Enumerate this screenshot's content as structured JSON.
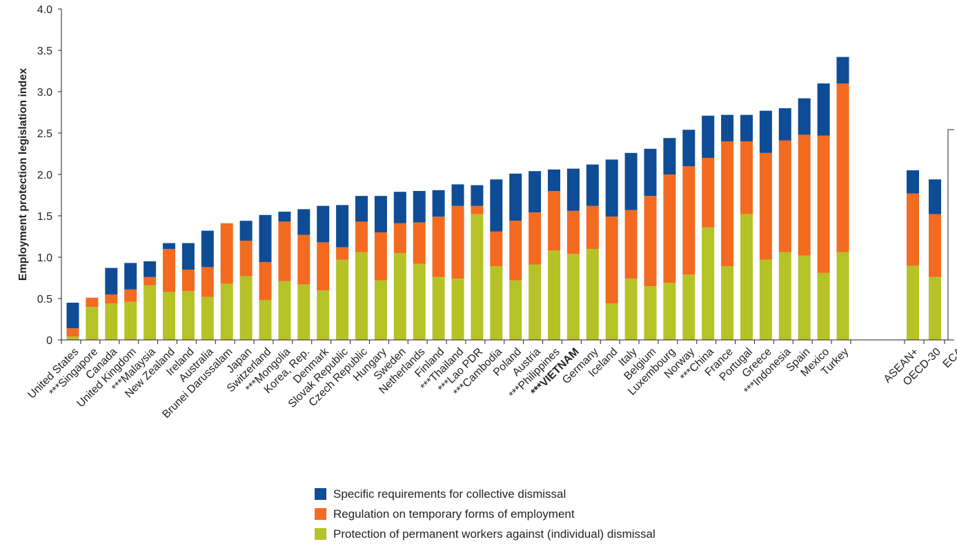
{
  "chart_data": {
    "type": "bar",
    "stacked": true,
    "ylabel": "Employment protection legislation index",
    "ylim": [
      0,
      4.0
    ],
    "yticks": [
      "0",
      "0.5",
      "1.0",
      "1.5",
      "2.0",
      "2.5",
      "3.0",
      "3.5",
      "4.0"
    ],
    "categories": [
      "United States",
      "***Singapore",
      "Canada",
      "United Kingdom",
      "***Malaysia",
      "New Zealand",
      "Ireland",
      "Australia",
      "Brunei Darussalam",
      "Japan",
      "Switzerland",
      "***Mongolia",
      "Korea, Rep.",
      "Denmark",
      "Slovak Republic",
      "Czech Republic",
      "Hungary",
      "Sweden",
      "Netherlands",
      "Finland",
      "***Thailand",
      "***Lao PDR",
      "***Cambodia",
      "Poland",
      "Austria",
      "***Philippines",
      "***VIETNAM",
      "Germany",
      "Iceland",
      "Italy",
      "Belgium",
      "Luxembourg",
      "Norway",
      "***China",
      "France",
      "Portugal",
      "Greece",
      "***Indonesia",
      "Spain",
      "Mexico",
      "Turkey",
      "ASEAN+",
      "OECD-30",
      "ECA"
    ],
    "bold_categories": [
      "***VIETNAM"
    ],
    "series": [
      {
        "name": "Protection of permanent workers against (individual) dismissal",
        "color": "#b5c327",
        "values": [
          0.04,
          0.4,
          0.44,
          0.46,
          0.66,
          0.58,
          0.59,
          0.52,
          0.68,
          0.77,
          0.48,
          0.71,
          0.67,
          0.6,
          0.97,
          1.06,
          0.72,
          1.05,
          0.92,
          0.76,
          0.74,
          1.52,
          0.89,
          0.72,
          0.91,
          1.08,
          1.04,
          1.1,
          0.44,
          0.74,
          0.65,
          0.69,
          0.79,
          1.36,
          0.89,
          1.52,
          0.97,
          1.06,
          1.02,
          0.81,
          1.06,
          0.9,
          0.76,
          null
        ]
      },
      {
        "name": "Regulation on temporary forms of employment",
        "color": "#f26b21",
        "values": [
          0.1,
          0.11,
          0.11,
          0.15,
          0.1,
          0.52,
          0.26,
          0.36,
          0.73,
          0.43,
          0.46,
          0.72,
          0.6,
          0.58,
          0.15,
          0.37,
          0.58,
          0.36,
          0.5,
          0.73,
          0.88,
          0.1,
          0.42,
          0.72,
          0.63,
          0.72,
          0.52,
          0.52,
          1.05,
          0.83,
          1.09,
          1.31,
          1.31,
          0.84,
          1.51,
          0.88,
          1.29,
          1.35,
          1.46,
          1.66,
          2.04,
          0.87,
          0.76,
          null
        ]
      },
      {
        "name": "Specific requirements for collective dismissal",
        "color": "#0e4c96",
        "values": [
          0.31,
          0.0,
          0.32,
          0.32,
          0.19,
          0.07,
          0.32,
          0.44,
          0.0,
          0.24,
          0.57,
          0.12,
          0.31,
          0.44,
          0.51,
          0.31,
          0.44,
          0.38,
          0.38,
          0.32,
          0.26,
          0.25,
          0.63,
          0.57,
          0.5,
          0.26,
          0.51,
          0.5,
          0.69,
          0.69,
          0.57,
          0.44,
          0.44,
          0.51,
          0.32,
          0.32,
          0.51,
          0.39,
          0.44,
          0.63,
          0.32,
          0.28,
          0.42,
          null
        ]
      }
    ],
    "legend_position": "bottom-center",
    "grid": false
  }
}
